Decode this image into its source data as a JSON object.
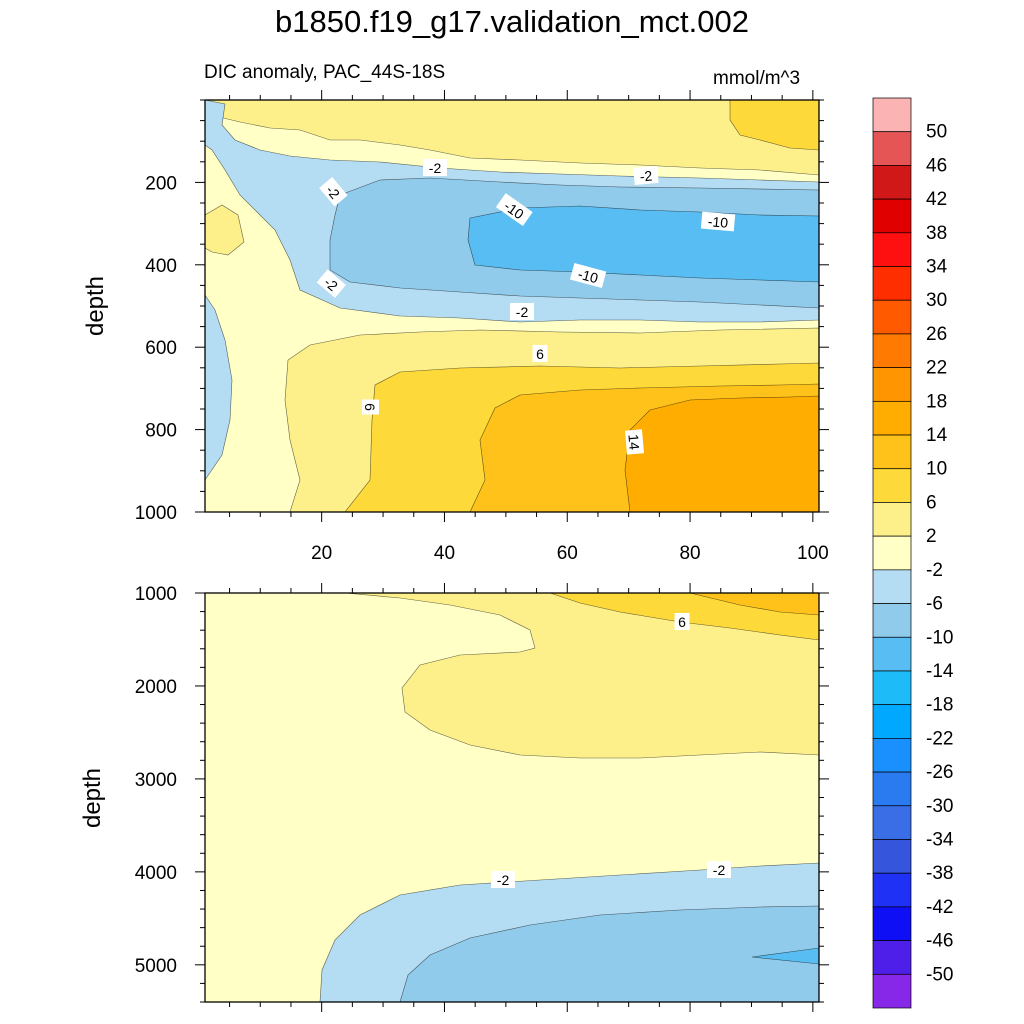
{
  "header": {
    "title": "b1850.f19_g17.validation_mct.002",
    "subtitle": "DIC anomaly, PAC_44S-18S",
    "units": "mmol/m^3"
  },
  "chart_data": [
    {
      "type": "heatmap",
      "panel": "upper",
      "ylabel": "depth",
      "xlabel": "",
      "xlim": [
        1,
        101
      ],
      "ylim": [
        1000,
        0
      ],
      "x_ticks": [
        20,
        40,
        60,
        80,
        100
      ],
      "y_ticks": [
        200,
        400,
        600,
        800,
        1000
      ],
      "contour_labels": [
        "-2",
        "-2",
        "-2",
        "-10",
        "-10",
        "-2",
        "-10",
        "-2",
        "6",
        "6",
        "14"
      ]
    },
    {
      "type": "heatmap",
      "panel": "lower",
      "ylabel": "depth",
      "xlabel": "",
      "xlim": [
        1,
        101
      ],
      "ylim": [
        5400,
        1000
      ],
      "x_ticks": [
        20,
        40,
        60,
        80,
        100
      ],
      "y_ticks": [
        1000,
        2000,
        3000,
        4000,
        5000
      ],
      "contour_labels": [
        "6",
        "-2",
        "-2"
      ]
    }
  ],
  "colorbar": {
    "labels": [
      "50",
      "46",
      "42",
      "38",
      "34",
      "30",
      "26",
      "22",
      "18",
      "14",
      "10",
      "6",
      "2",
      "-2",
      "-6",
      "-10",
      "-14",
      "-18",
      "-22",
      "-26",
      "-30",
      "-34",
      "-38",
      "-42",
      "-46",
      "-50"
    ],
    "colors": [
      "#fbb3b3",
      "#e55555",
      "#d01818",
      "#e00000",
      "#ff1010",
      "#ff2e00",
      "#ff5a00",
      "#ff7a00",
      "#ff9500",
      "#ffad00",
      "#ffc21a",
      "#fdd93a",
      "#fdf08a",
      "#ffffc6",
      "#b4dcf2",
      "#90cbec",
      "#58bdf2",
      "#1dbbf7",
      "#00a8ff",
      "#1a90ff",
      "#2a7bf0",
      "#3a6ee6",
      "#3555dd",
      "#1f31f5",
      "#0f0ff5",
      "#4e1fe8",
      "#8728e8"
    ]
  }
}
